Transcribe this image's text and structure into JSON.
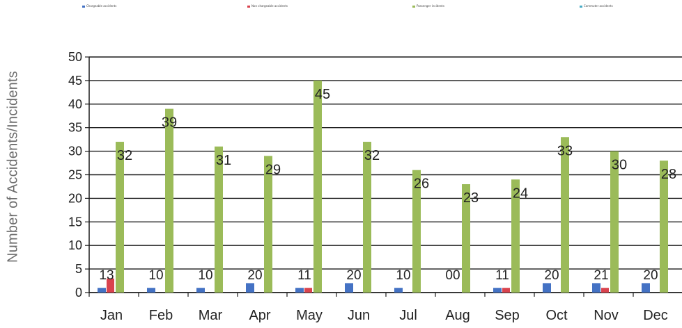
{
  "chart_data": {
    "type": "bar",
    "categories": [
      "Jan",
      "Feb",
      "Mar",
      "Apr",
      "May",
      "Jun",
      "Jul",
      "Aug",
      "Sep",
      "Oct",
      "Nov",
      "Dec"
    ],
    "series": [
      {
        "name": "Chargeable accidents",
        "values": [
          1,
          1,
          1,
          2,
          1,
          2,
          1,
          0,
          1,
          2,
          2,
          2
        ],
        "color": "#4472c4"
      },
      {
        "name": "Non chargeable accidents",
        "values": [
          3,
          0,
          0,
          0,
          1,
          0,
          0,
          0,
          1,
          0,
          1,
          0
        ],
        "color": "#d9434e"
      },
      {
        "name": "Passenger incidents",
        "values": [
          32,
          39,
          31,
          29,
          45,
          32,
          26,
          23,
          24,
          33,
          30,
          28
        ],
        "color": "#9bbb59"
      },
      {
        "name": "Commuter accidents",
        "values": [
          0,
          0,
          0,
          0,
          0,
          0,
          0,
          0,
          0,
          0,
          0,
          0
        ],
        "color": "#4bacc6"
      }
    ],
    "small_labels": [
      "13",
      "10",
      "10",
      "20",
      "11",
      "20",
      "10",
      "00",
      "11",
      "20",
      "21",
      "20"
    ],
    "big_labels": [
      "32",
      "39",
      "31",
      "29",
      "45",
      "32",
      "26",
      "23",
      "24",
      "33",
      "30",
      "28"
    ],
    "ylabel": "Number of Accidents/Incidents",
    "xlabel": "",
    "ylim": [
      0,
      50
    ],
    "yticks": [
      0,
      5,
      10,
      15,
      20,
      25,
      30,
      35,
      40,
      45,
      50
    ],
    "grid": true,
    "legend_position": "top"
  }
}
